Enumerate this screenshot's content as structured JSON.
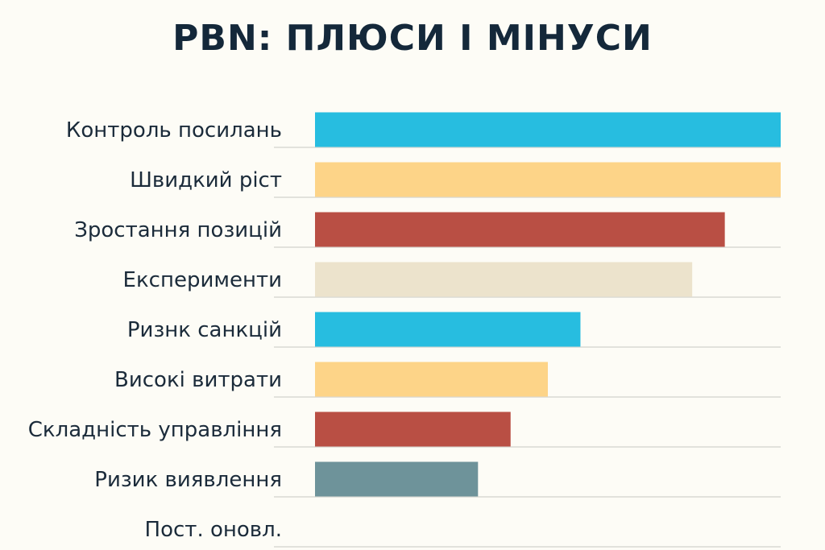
{
  "chart_data": {
    "type": "bar",
    "orientation": "horizontal",
    "title": "PBN: ПЛЮСИ І МІНУСИ",
    "xlabel": "",
    "ylabel": "",
    "xlim": [
      0,
      100
    ],
    "grid": true,
    "legend": "none",
    "categories": [
      "Контроль посилань",
      "Швидкий ріст",
      "Зростання позицій",
      "Експерименти",
      "Ризнк санкцій",
      "Високі витрати",
      "Складність управління",
      "Ризик  виявлення",
      "Пост. оновл."
    ],
    "values": [
      100,
      100,
      88,
      81,
      57,
      50,
      42,
      35,
      0
    ],
    "colors": [
      "#27bde0",
      "#fdd488",
      "#b94f44",
      "#ece3cc",
      "#27bde0",
      "#fdd488",
      "#b94f44",
      "#6e939a",
      "#6e939a"
    ]
  }
}
